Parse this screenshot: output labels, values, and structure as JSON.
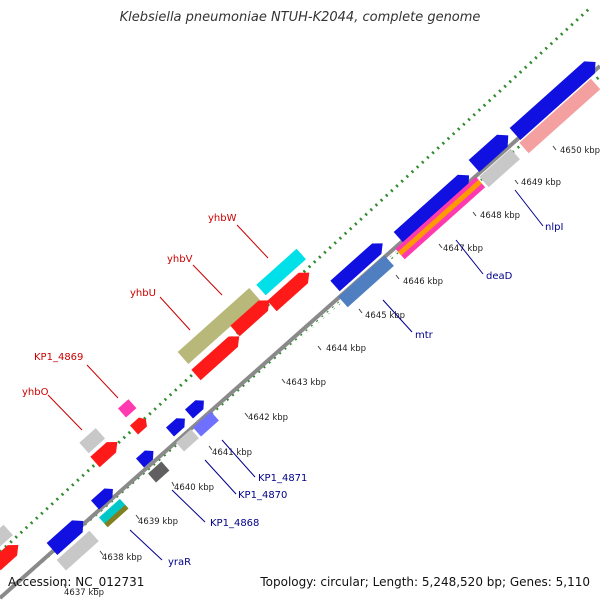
{
  "title": "Klebsiella pneumoniae NTUH-K2044, complete genome",
  "footer": {
    "accession": "Accession: NC_012731",
    "summary": "Topology: circular; Length: 5,248,520 bp; Genes: 5,110"
  },
  "colors": {
    "backbone": "#8a8a8a",
    "dots": "#2e8b2e",
    "label_red": "#cc0000",
    "label_blue": "#00008b",
    "tick_text": "#222222"
  },
  "ticks": [
    "4637 kbp",
    "4638 kbp",
    "4639 kbp",
    "4640 kbp",
    "4641 kbp",
    "4642 kbp",
    "4643 kbp",
    "4644 kbp",
    "4645 kbp",
    "4646 kbp",
    "4647 kbp",
    "4648 kbp",
    "4649 kbp",
    "4650 kbp"
  ],
  "labels": {
    "yhbO": "yhbO",
    "kp1_4869": "KP1_4869",
    "yhbU": "yhbU",
    "yhbV": "yhbV",
    "yhbW": "yhbW",
    "yraR": "yraR",
    "kp1_4868": "KP1_4868",
    "kp1_4870": "KP1_4870",
    "kp1_4871": "KP1_4871",
    "mtr": "mtr",
    "deaD": "deaD",
    "nlpI": "nlpI"
  }
}
